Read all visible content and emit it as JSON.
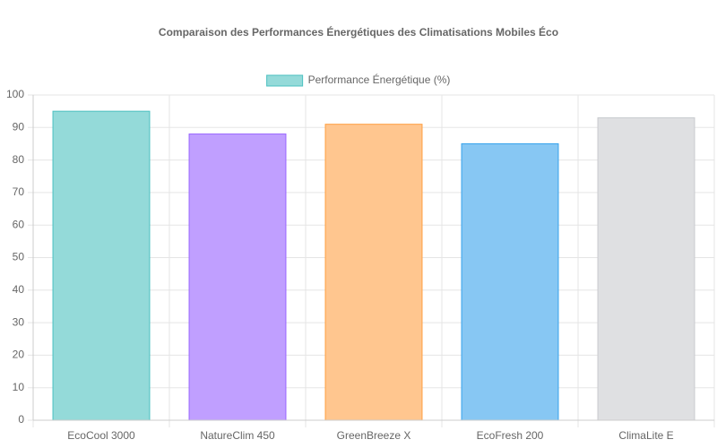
{
  "chart_data": {
    "type": "bar",
    "title": "Comparaison des Performances Énergétiques des Climatisations Mobiles Éco",
    "categories": [
      "EcoCool 3000",
      "NatureClim 450",
      "GreenBreeze X",
      "EcoFresh 200",
      "ClimaLite E"
    ],
    "series": [
      {
        "name": "Performance Énergétique (%)",
        "values": [
          95,
          88,
          91,
          85,
          93
        ],
        "colors": [
          "#94dad9",
          "#c09fff",
          "#ffc68f",
          "#87c7f3",
          "#dfe0e2"
        ],
        "border_colors": [
          "#4bc0c0",
          "#9966ff",
          "#ff9f40",
          "#36a2eb",
          "#c9cbcf"
        ]
      }
    ],
    "ylim": [
      0,
      100
    ],
    "yticks": [
      0,
      10,
      20,
      30,
      40,
      50,
      60,
      70,
      80,
      90,
      100
    ],
    "grid": true,
    "legend": "top"
  }
}
